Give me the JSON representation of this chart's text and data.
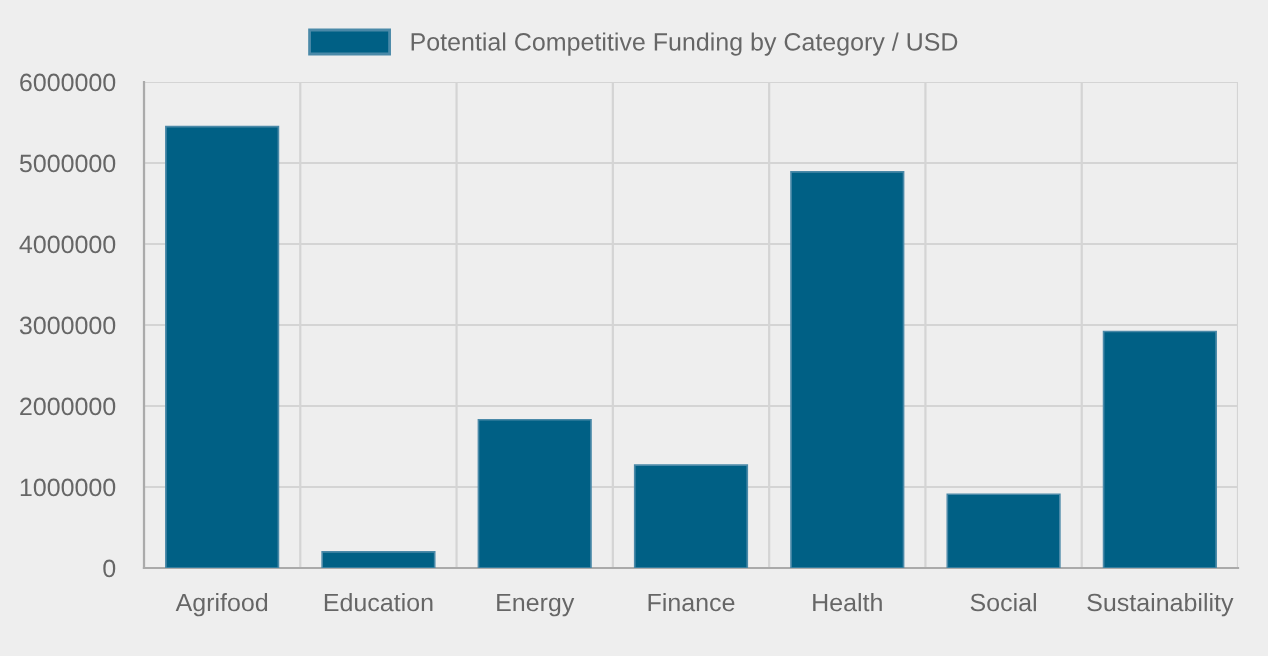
{
  "chart_data": {
    "type": "bar",
    "categories": [
      "Agrifood",
      "Education",
      "Energy",
      "Finance",
      "Health",
      "Social",
      "Sustainability"
    ],
    "series": [
      {
        "name": "Potential Competitive Funding by Category / USD",
        "color": "#006085",
        "values": [
          5450000,
          200000,
          1830000,
          1270000,
          4890000,
          910000,
          2920000
        ]
      }
    ],
    "ylim": [
      0,
      6000000
    ],
    "yticks": [
      0,
      1000000,
      2000000,
      3000000,
      4000000,
      5000000,
      6000000
    ],
    "grid": true,
    "legend": "top"
  }
}
